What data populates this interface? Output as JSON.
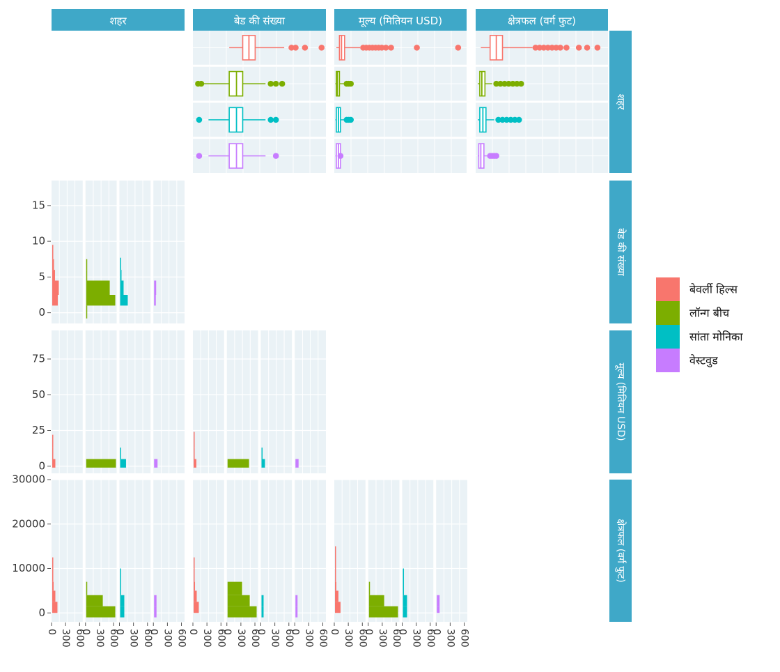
{
  "colors": {
    "strip": "#3FA8C8",
    "strip_text": "#ffffff",
    "panel_bg": "#EAF2F6",
    "grid": "#ffffff",
    "axis_text": "#333333"
  },
  "strips": {
    "columns": [
      "शहर",
      "बेड की संख्या",
      "मूल्य (मितियन USD)",
      "क्षेत्रफल (वर्ग फुट)"
    ],
    "rows": [
      "शहर",
      "बेड की संख्या",
      "मूल्य (मितियन USD)",
      "क्षेत्रफल (वर्ग फुट)"
    ]
  },
  "legend": {
    "items": [
      {
        "label": "बेवर्ली हिल्स",
        "color": "#F8766D"
      },
      {
        "label": "लॉन्ग बीच",
        "color": "#7CAE00"
      },
      {
        "label": "सांता मोनिका",
        "color": "#00BFC4"
      },
      {
        "label": "वेस्टवुड",
        "color": "#C77CFF"
      }
    ]
  },
  "chart_data": {
    "type": "scatter",
    "subtype": "pairs-matrix",
    "variables": [
      "शहर",
      "बेड की संख्या",
      "मूल्य (मितियन USD)",
      "क्षेत्रफल (वर्ग फुट)"
    ],
    "groups": [
      "बेवर्ली हिल्स",
      "लॉन्ग बीच",
      "सांता मोनिका",
      "वेस्टवुड"
    ],
    "x_ticks": [
      "0",
      "300",
      "600"
    ],
    "y_axes": {
      "beds": {
        "ticks": [
          "0",
          "5",
          "10",
          "15"
        ],
        "ylim": [
          -1.5,
          18.5
        ]
      },
      "price": {
        "ticks": [
          "0",
          "25",
          "50",
          "75"
        ],
        "ylim": [
          -5,
          95
        ]
      },
      "area": {
        "ticks": [
          "0",
          "10000",
          "20000",
          "30000"
        ],
        "ylim": [
          -2000,
          30000
        ]
      }
    },
    "boxplots": {
      "beds": [
        {
          "group": "बेवर्ली हिल्स",
          "q1": 0.48,
          "median": 0.54,
          "q3": 0.6,
          "wmin": 0.35,
          "wmax": 0.88,
          "outliers": [
            0.95,
            0.99,
            1.08,
            1.24
          ]
        },
        {
          "group": "लॉन्ग बीच",
          "q1": 0.35,
          "median": 0.42,
          "q3": 0.48,
          "wmin": 0.1,
          "wmax": 0.7,
          "outliers": [
            0.05,
            0.08,
            0.75,
            0.8,
            0.86
          ]
        },
        {
          "group": "सांता मोनिका",
          "q1": 0.35,
          "median": 0.42,
          "q3": 0.48,
          "wmin": 0.15,
          "wmax": 0.7,
          "outliers": [
            0.06,
            0.75,
            0.8
          ]
        },
        {
          "group": "वेस्टवुड",
          "q1": 0.35,
          "median": 0.42,
          "q3": 0.48,
          "wmin": 0.15,
          "wmax": 0.7,
          "outliers": [
            0.06,
            0.8
          ]
        }
      ],
      "price": [
        {
          "group": "बेवर्ली हिल्स",
          "q1": 0.05,
          "median": 0.07,
          "q3": 0.1,
          "wmin": 0.02,
          "wmax": 0.25,
          "outliers": [
            0.28,
            0.31,
            0.34,
            0.37,
            0.4,
            0.43,
            0.46,
            0.5,
            0.55,
            0.8,
            1.2
          ]
        },
        {
          "group": "लॉन्ग बीच",
          "q1": 0.02,
          "median": 0.03,
          "q3": 0.05,
          "wmin": 0.01,
          "wmax": 0.1,
          "outliers": [
            0.12,
            0.14,
            0.16
          ]
        },
        {
          "group": "सांता मोनिका",
          "q1": 0.02,
          "median": 0.04,
          "q3": 0.06,
          "wmin": 0.01,
          "wmax": 0.1,
          "outliers": [
            0.12,
            0.14,
            0.16
          ]
        },
        {
          "group": "वेस्टवुड",
          "q1": 0.02,
          "median": 0.04,
          "q3": 0.06,
          "wmin": 0.01,
          "wmax": 0.08,
          "outliers": [
            0.06
          ]
        }
      ],
      "area": [
        {
          "group": "बेवर्ली हिल्स",
          "q1": 0.14,
          "median": 0.2,
          "q3": 0.26,
          "wmin": 0.05,
          "wmax": 0.55,
          "outliers": [
            0.58,
            0.62,
            0.66,
            0.7,
            0.74,
            0.78,
            0.82,
            0.88,
            1.0,
            1.08,
            1.18
          ]
        },
        {
          "group": "लॉन्ग बीच",
          "q1": 0.04,
          "median": 0.06,
          "q3": 0.09,
          "wmin": 0.02,
          "wmax": 0.16,
          "outliers": [
            0.2,
            0.24,
            0.28,
            0.32,
            0.36,
            0.4,
            0.44
          ]
        },
        {
          "group": "सांता मोनिका",
          "q1": 0.04,
          "median": 0.07,
          "q3": 0.1,
          "wmin": 0.02,
          "wmax": 0.18,
          "outliers": [
            0.22,
            0.26,
            0.3,
            0.34,
            0.38,
            0.42
          ]
        },
        {
          "group": "वेस्टवुड",
          "q1": 0.03,
          "median": 0.05,
          "q3": 0.08,
          "wmin": 0.02,
          "wmax": 0.12,
          "outliers": [
            0.14,
            0.16,
            0.18,
            0.2
          ]
        }
      ]
    },
    "histograms": {
      "beds_by_city": [
        {
          "group": "बेवर्ली हिल्स",
          "bins": [
            {
              "y0": 1,
              "y1": 2.5,
              "count": 80
            },
            {
              "y0": 2.5,
              "y1": 4.5,
              "count": 95
            },
            {
              "y0": 4.5,
              "y1": 6,
              "count": 40
            },
            {
              "y0": 6,
              "y1": 7.5,
              "count": 25
            },
            {
              "y0": 7.5,
              "y1": 9.5,
              "count": 10
            }
          ]
        },
        {
          "group": "लॉन्ग बीच",
          "bins": [
            {
              "y0": -0.8,
              "y1": 1,
              "count": 8
            },
            {
              "y0": 1,
              "y1": 2.5,
              "count": 420
            },
            {
              "y0": 2.5,
              "y1": 4.5,
              "count": 340
            },
            {
              "y0": 4.5,
              "y1": 6,
              "count": 10
            },
            {
              "y0": 6,
              "y1": 7.5,
              "count": 5
            }
          ]
        },
        {
          "group": "सांता मोनिका",
          "bins": [
            {
              "y0": 1,
              "y1": 2.5,
              "count": 110
            },
            {
              "y0": 2.5,
              "y1": 4.5,
              "count": 50
            },
            {
              "y0": 4.5,
              "y1": 6,
              "count": 20
            },
            {
              "y0": 6,
              "y1": 7.7,
              "count": 5
            }
          ]
        },
        {
          "group": "वेस्टवुड",
          "bins": [
            {
              "y0": 1,
              "y1": 2.5,
              "count": 25
            },
            {
              "y0": 2.5,
              "y1": 4.5,
              "count": 30
            }
          ]
        }
      ],
      "price_by_city": [
        {
          "group": "बेवर्ली हिल्स",
          "bins": [
            {
              "y0": -1,
              "y1": 5,
              "count": 45
            },
            {
              "y0": 5,
              "y1": 13,
              "count": 15
            },
            {
              "y0": 13,
              "y1": 22,
              "count": 5
            }
          ]
        },
        {
          "group": "लॉन्ग बीच",
          "bins": [
            {
              "y0": -1,
              "y1": 5,
              "count": 430
            }
          ]
        },
        {
          "group": "सांता मोनिका",
          "bins": [
            {
              "y0": -1,
              "y1": 5,
              "count": 85
            },
            {
              "y0": 5,
              "y1": 13,
              "count": 8
            }
          ]
        },
        {
          "group": "वेस्टवुड",
          "bins": [
            {
              "y0": -1,
              "y1": 5,
              "count": 50
            }
          ]
        }
      ],
      "price_by_beds": [
        {
          "group": "बेवर्ली हिल्स",
          "bins": [
            {
              "y0": -1,
              "y1": 5,
              "count": 40
            },
            {
              "y0": 5,
              "y1": 13,
              "count": 15
            },
            {
              "y0": 13,
              "y1": 24,
              "count": 6
            }
          ]
        },
        {
          "group": "लॉन्ग बीच",
          "bins": [
            {
              "y0": -1,
              "y1": 5,
              "count": 310
            }
          ]
        },
        {
          "group": "सांता मोनिका",
          "bins": [
            {
              "y0": -1,
              "y1": 5,
              "count": 50
            },
            {
              "y0": 5,
              "y1": 13,
              "count": 15
            }
          ]
        },
        {
          "group": "वेस्टवुड",
          "bins": [
            {
              "y0": -1,
              "y1": 5,
              "count": 45
            }
          ]
        }
      ],
      "area_by_city": [
        {
          "group": "बेवर्ली हिल्स",
          "bins": [
            {
              "y0": 0,
              "y1": 2500,
              "count": 75
            },
            {
              "y0": 2500,
              "y1": 5000,
              "count": 45
            },
            {
              "y0": 5000,
              "y1": 7000,
              "count": 20
            },
            {
              "y0": 7000,
              "y1": 12500,
              "count": 10
            }
          ]
        },
        {
          "group": "लॉन्ग बीच",
          "bins": [
            {
              "y0": -1000,
              "y1": 1500,
              "count": 420
            },
            {
              "y0": 1500,
              "y1": 4000,
              "count": 240
            },
            {
              "y0": 4000,
              "y1": 7000,
              "count": 8
            }
          ]
        },
        {
          "group": "सांता मोनिका",
          "bins": [
            {
              "y0": -1000,
              "y1": 1500,
              "count": 60
            },
            {
              "y0": 1500,
              "y1": 4000,
              "count": 60
            },
            {
              "y0": 4000,
              "y1": 10000,
              "count": 6
            }
          ]
        },
        {
          "group": "वेस्टवुड",
          "bins": [
            {
              "y0": -1000,
              "y1": 1500,
              "count": 35
            },
            {
              "y0": 1500,
              "y1": 4000,
              "count": 35
            }
          ]
        }
      ],
      "area_by_beds": [
        {
          "group": "बेवर्ली हिल्स",
          "bins": [
            {
              "y0": 0,
              "y1": 2500,
              "count": 75
            },
            {
              "y0": 2500,
              "y1": 5000,
              "count": 45
            },
            {
              "y0": 5000,
              "y1": 7000,
              "count": 20
            },
            {
              "y0": 7000,
              "y1": 12500,
              "count": 10
            }
          ]
        },
        {
          "group": "लॉन्ग बीच",
          "bins": [
            {
              "y0": -1000,
              "y1": 1500,
              "count": 420
            },
            {
              "y0": 1500,
              "y1": 4000,
              "count": 320
            },
            {
              "y0": 4000,
              "y1": 7000,
              "count": 210
            }
          ]
        },
        {
          "group": "सांता मोनिका",
          "bins": [
            {
              "y0": -1000,
              "y1": 1500,
              "count": 30
            },
            {
              "y0": 1500,
              "y1": 4000,
              "count": 30
            }
          ]
        },
        {
          "group": "वेस्टवुड",
          "bins": [
            {
              "y0": -1000,
              "y1": 1500,
              "count": 30
            },
            {
              "y0": 1500,
              "y1": 4000,
              "count": 30
            }
          ]
        }
      ],
      "area_by_price": [
        {
          "group": "बेवर्ली हिल्स",
          "bins": [
            {
              "y0": 0,
              "y1": 2500,
              "count": 80
            },
            {
              "y0": 2500,
              "y1": 5000,
              "count": 50
            },
            {
              "y0": 5000,
              "y1": 7000,
              "count": 20
            },
            {
              "y0": 7000,
              "y1": 15000,
              "count": 8
            }
          ]
        },
        {
          "group": "लॉन्ग बीच",
          "bins": [
            {
              "y0": -1000,
              "y1": 1500,
              "count": 420
            },
            {
              "y0": 1500,
              "y1": 4000,
              "count": 220
            },
            {
              "y0": 4000,
              "y1": 7000,
              "count": 10
            }
          ]
        },
        {
          "group": "सांता मोनिका",
          "bins": [
            {
              "y0": -1000,
              "y1": 1500,
              "count": 60
            },
            {
              "y0": 1500,
              "y1": 4000,
              "count": 60
            },
            {
              "y0": 4000,
              "y1": 10000,
              "count": 8
            }
          ]
        },
        {
          "group": "वेस्टवुड",
          "bins": [
            {
              "y0": 0,
              "y1": 1500,
              "count": 40
            },
            {
              "y0": 1500,
              "y1": 4000,
              "count": 40
            }
          ]
        }
      ]
    }
  }
}
